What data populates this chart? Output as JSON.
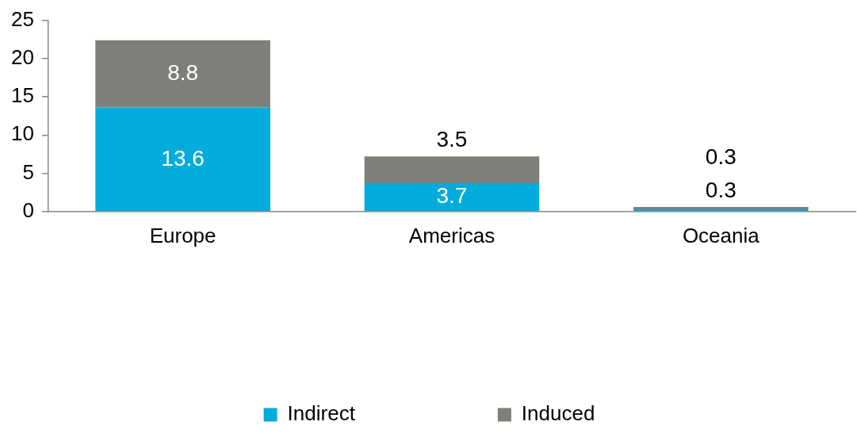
{
  "chart_data": {
    "type": "bar",
    "stacked": true,
    "categories": [
      "Europe",
      "Americas",
      "Oceania"
    ],
    "series": [
      {
        "name": "Indirect",
        "color": "#00acdc",
        "values": [
          13.6,
          3.7,
          0.3
        ]
      },
      {
        "name": "Induced",
        "color": "#7f7f79",
        "values": [
          8.8,
          3.5,
          0.3
        ]
      }
    ],
    "ylim": [
      0,
      25
    ],
    "yticks": [
      0,
      5,
      10,
      15,
      20,
      25
    ],
    "grid": false,
    "legend": "bottom",
    "data_labels": true
  }
}
